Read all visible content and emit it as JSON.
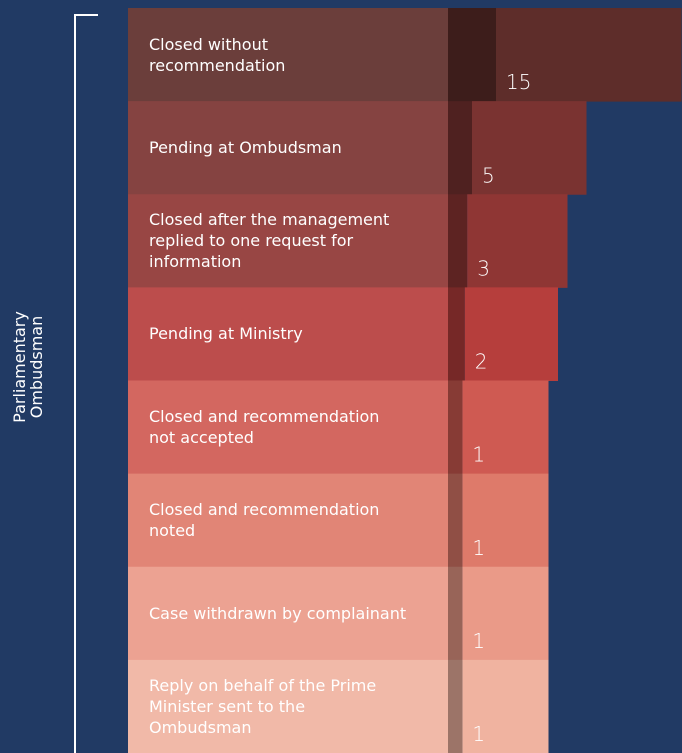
{
  "chart_data": {
    "type": "bar",
    "group_label": "Parliamentary Ombudsman",
    "categories": [
      "Closed without recommendation",
      "Pending at Ombudsman",
      "Closed after the management replied to one request for information",
      "Pending at Ministry",
      "Closed and recommendation not accepted",
      "Closed and recommendation noted",
      "Case withdrawn by complainant",
      "Reply on behalf of the Prime Minister sent to the Ombudsman"
    ],
    "values": [
      15,
      5,
      3,
      2,
      1,
      1,
      1,
      1
    ],
    "colors": [
      "#5e2d2a",
      "#7a3331",
      "#8f3634",
      "#b63e3c",
      "#cf5a52",
      "#de7a6a",
      "#ea9a88",
      "#f0b3a0"
    ]
  }
}
